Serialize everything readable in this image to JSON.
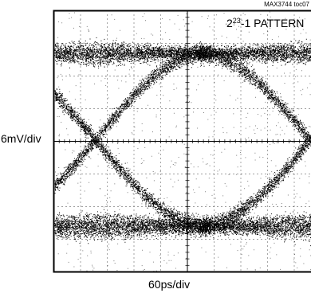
{
  "figure_id": "MAX3744 toc07",
  "chart_data": {
    "type": "eye-diagram",
    "annotation": {
      "base": "2",
      "exponent": "23",
      "rest": "-1 PATTERN"
    },
    "ylabel": "6mV/div",
    "xlabel": "60ps/div",
    "grid": true,
    "x_divisions": 10,
    "y_divisions": 8,
    "levels_div": {
      "upper": 2.7,
      "lower": -2.6
    },
    "crossings_div": [
      -3.45,
      4.6
    ],
    "trace_color": "#000000"
  }
}
